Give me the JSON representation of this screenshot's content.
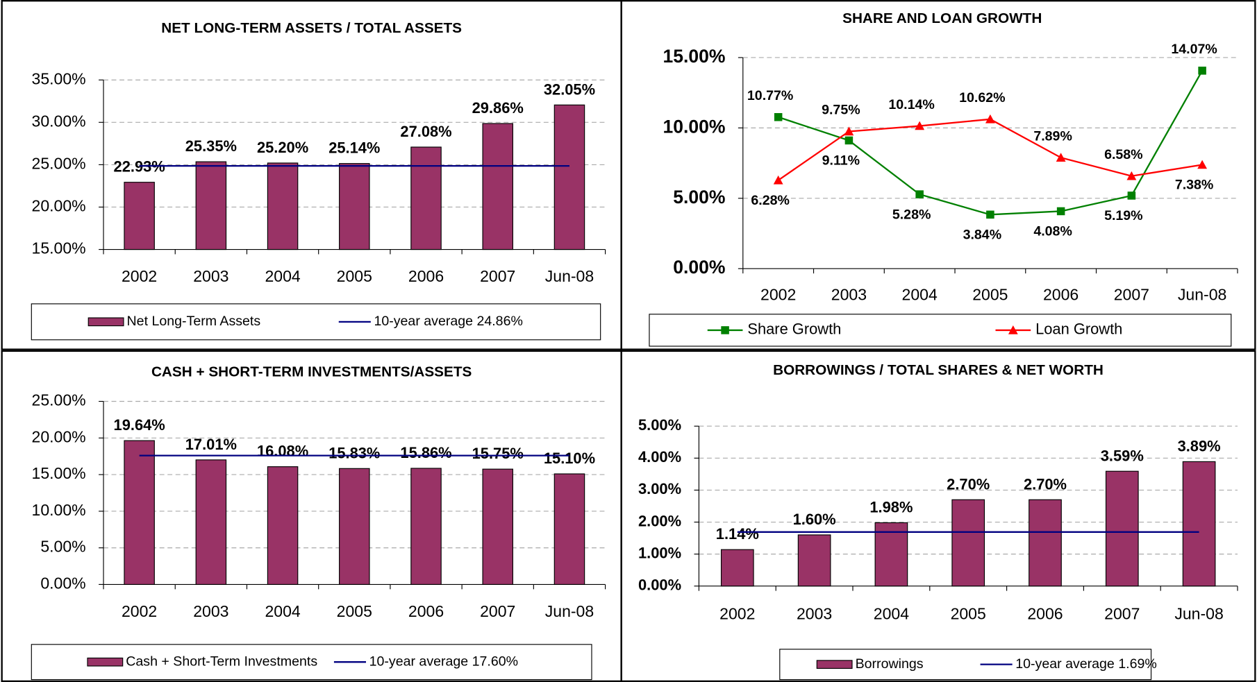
{
  "chart_data": [
    {
      "type": "bar",
      "title": "NET LONG-TERM ASSETS / TOTAL ASSETS",
      "categories": [
        "2002",
        "2003",
        "2004",
        "2005",
        "2006",
        "2007",
        "Jun-08"
      ],
      "series": [
        {
          "name": "Net Long-Term Assets",
          "color": "#993366",
          "values": [
            22.93,
            25.35,
            25.2,
            25.14,
            27.08,
            29.86,
            32.05
          ],
          "value_labels": [
            "22.93%",
            "25.35%",
            "25.20%",
            "25.14%",
            "27.08%",
            "29.86%",
            "32.05%"
          ]
        }
      ],
      "average": {
        "name": "10-year average 24.86%",
        "value": 24.86,
        "color": "#000080"
      },
      "ylim": [
        15,
        35
      ],
      "yticks": [
        {
          "value": 15,
          "label": "15.00%"
        },
        {
          "value": 20,
          "label": "20.00%"
        },
        {
          "value": 25,
          "label": "25.00%"
        },
        {
          "value": 30,
          "label": "30.00%"
        },
        {
          "value": 35,
          "label": "35.00%"
        }
      ],
      "grid": true
    },
    {
      "type": "line",
      "title": "SHARE AND LOAN GROWTH",
      "categories": [
        "2002",
        "2003",
        "2004",
        "2005",
        "2006",
        "2007",
        "Jun-08"
      ],
      "series": [
        {
          "name": "Share Growth",
          "color": "#008000",
          "marker": "square",
          "values": [
            10.77,
            9.11,
            5.28,
            3.84,
            4.08,
            5.19,
            14.07
          ],
          "value_labels": [
            "10.77%",
            "9.11%",
            "5.28%",
            "3.84%",
            "4.08%",
            "5.19%",
            "14.07%"
          ]
        },
        {
          "name": "Loan Growth",
          "color": "#ff0000",
          "marker": "triangle",
          "values": [
            6.28,
            9.75,
            10.14,
            10.62,
            7.89,
            6.58,
            7.38
          ],
          "value_labels": [
            "6.28%",
            "9.75%",
            "10.14%",
            "10.62%",
            "7.89%",
            "6.58%",
            "7.38%"
          ]
        }
      ],
      "ylim": [
        0,
        15
      ],
      "yticks": [
        {
          "value": 0,
          "label": "0.00%"
        },
        {
          "value": 5,
          "label": "5.00%"
        },
        {
          "value": 10,
          "label": "10.00%"
        },
        {
          "value": 15,
          "label": "15.00%"
        }
      ],
      "grid": true
    },
    {
      "type": "bar",
      "title": "CASH + SHORT-TERM INVESTMENTS/ASSETS",
      "categories": [
        "2002",
        "2003",
        "2004",
        "2005",
        "2006",
        "2007",
        "Jun-08"
      ],
      "series": [
        {
          "name": "Cash + Short-Term Investments",
          "color": "#993366",
          "values": [
            19.64,
            17.01,
            16.08,
            15.83,
            15.86,
            15.75,
            15.1
          ],
          "value_labels": [
            "19.64%",
            "17.01%",
            "16.08%",
            "15.83%",
            "15.86%",
            "15.75%",
            "15.10%"
          ]
        }
      ],
      "average": {
        "name": "10-year average 17.60%",
        "value": 17.6,
        "color": "#000080"
      },
      "ylim": [
        0,
        25
      ],
      "yticks": [
        {
          "value": 0,
          "label": "0.00%"
        },
        {
          "value": 5,
          "label": "5.00%"
        },
        {
          "value": 10,
          "label": "10.00%"
        },
        {
          "value": 15,
          "label": "15.00%"
        },
        {
          "value": 20,
          "label": "20.00%"
        },
        {
          "value": 25,
          "label": "25.00%"
        }
      ],
      "grid": true
    },
    {
      "type": "bar",
      "title": "BORROWINGS / TOTAL SHARES & NET WORTH",
      "categories": [
        "2002",
        "2003",
        "2004",
        "2005",
        "2006",
        "2007",
        "Jun-08"
      ],
      "series": [
        {
          "name": "Borrowings",
          "color": "#993366",
          "values": [
            1.14,
            1.6,
            1.98,
            2.7,
            2.7,
            3.59,
            3.89
          ],
          "value_labels": [
            "1.14%",
            "1.60%",
            "1.98%",
            "2.70%",
            "2.70%",
            "3.59%",
            "3.89%"
          ]
        }
      ],
      "average": {
        "name": "10-year average 1.69%",
        "value": 1.69,
        "color": "#000080"
      },
      "ylim": [
        0,
        5
      ],
      "yticks": [
        {
          "value": 0,
          "label": "0.00%"
        },
        {
          "value": 1,
          "label": "1.00%"
        },
        {
          "value": 2,
          "label": "2.00%"
        },
        {
          "value": 3,
          "label": "3.00%"
        },
        {
          "value": 4,
          "label": "4.00%"
        },
        {
          "value": 5,
          "label": "5.00%"
        }
      ],
      "grid": true
    }
  ]
}
